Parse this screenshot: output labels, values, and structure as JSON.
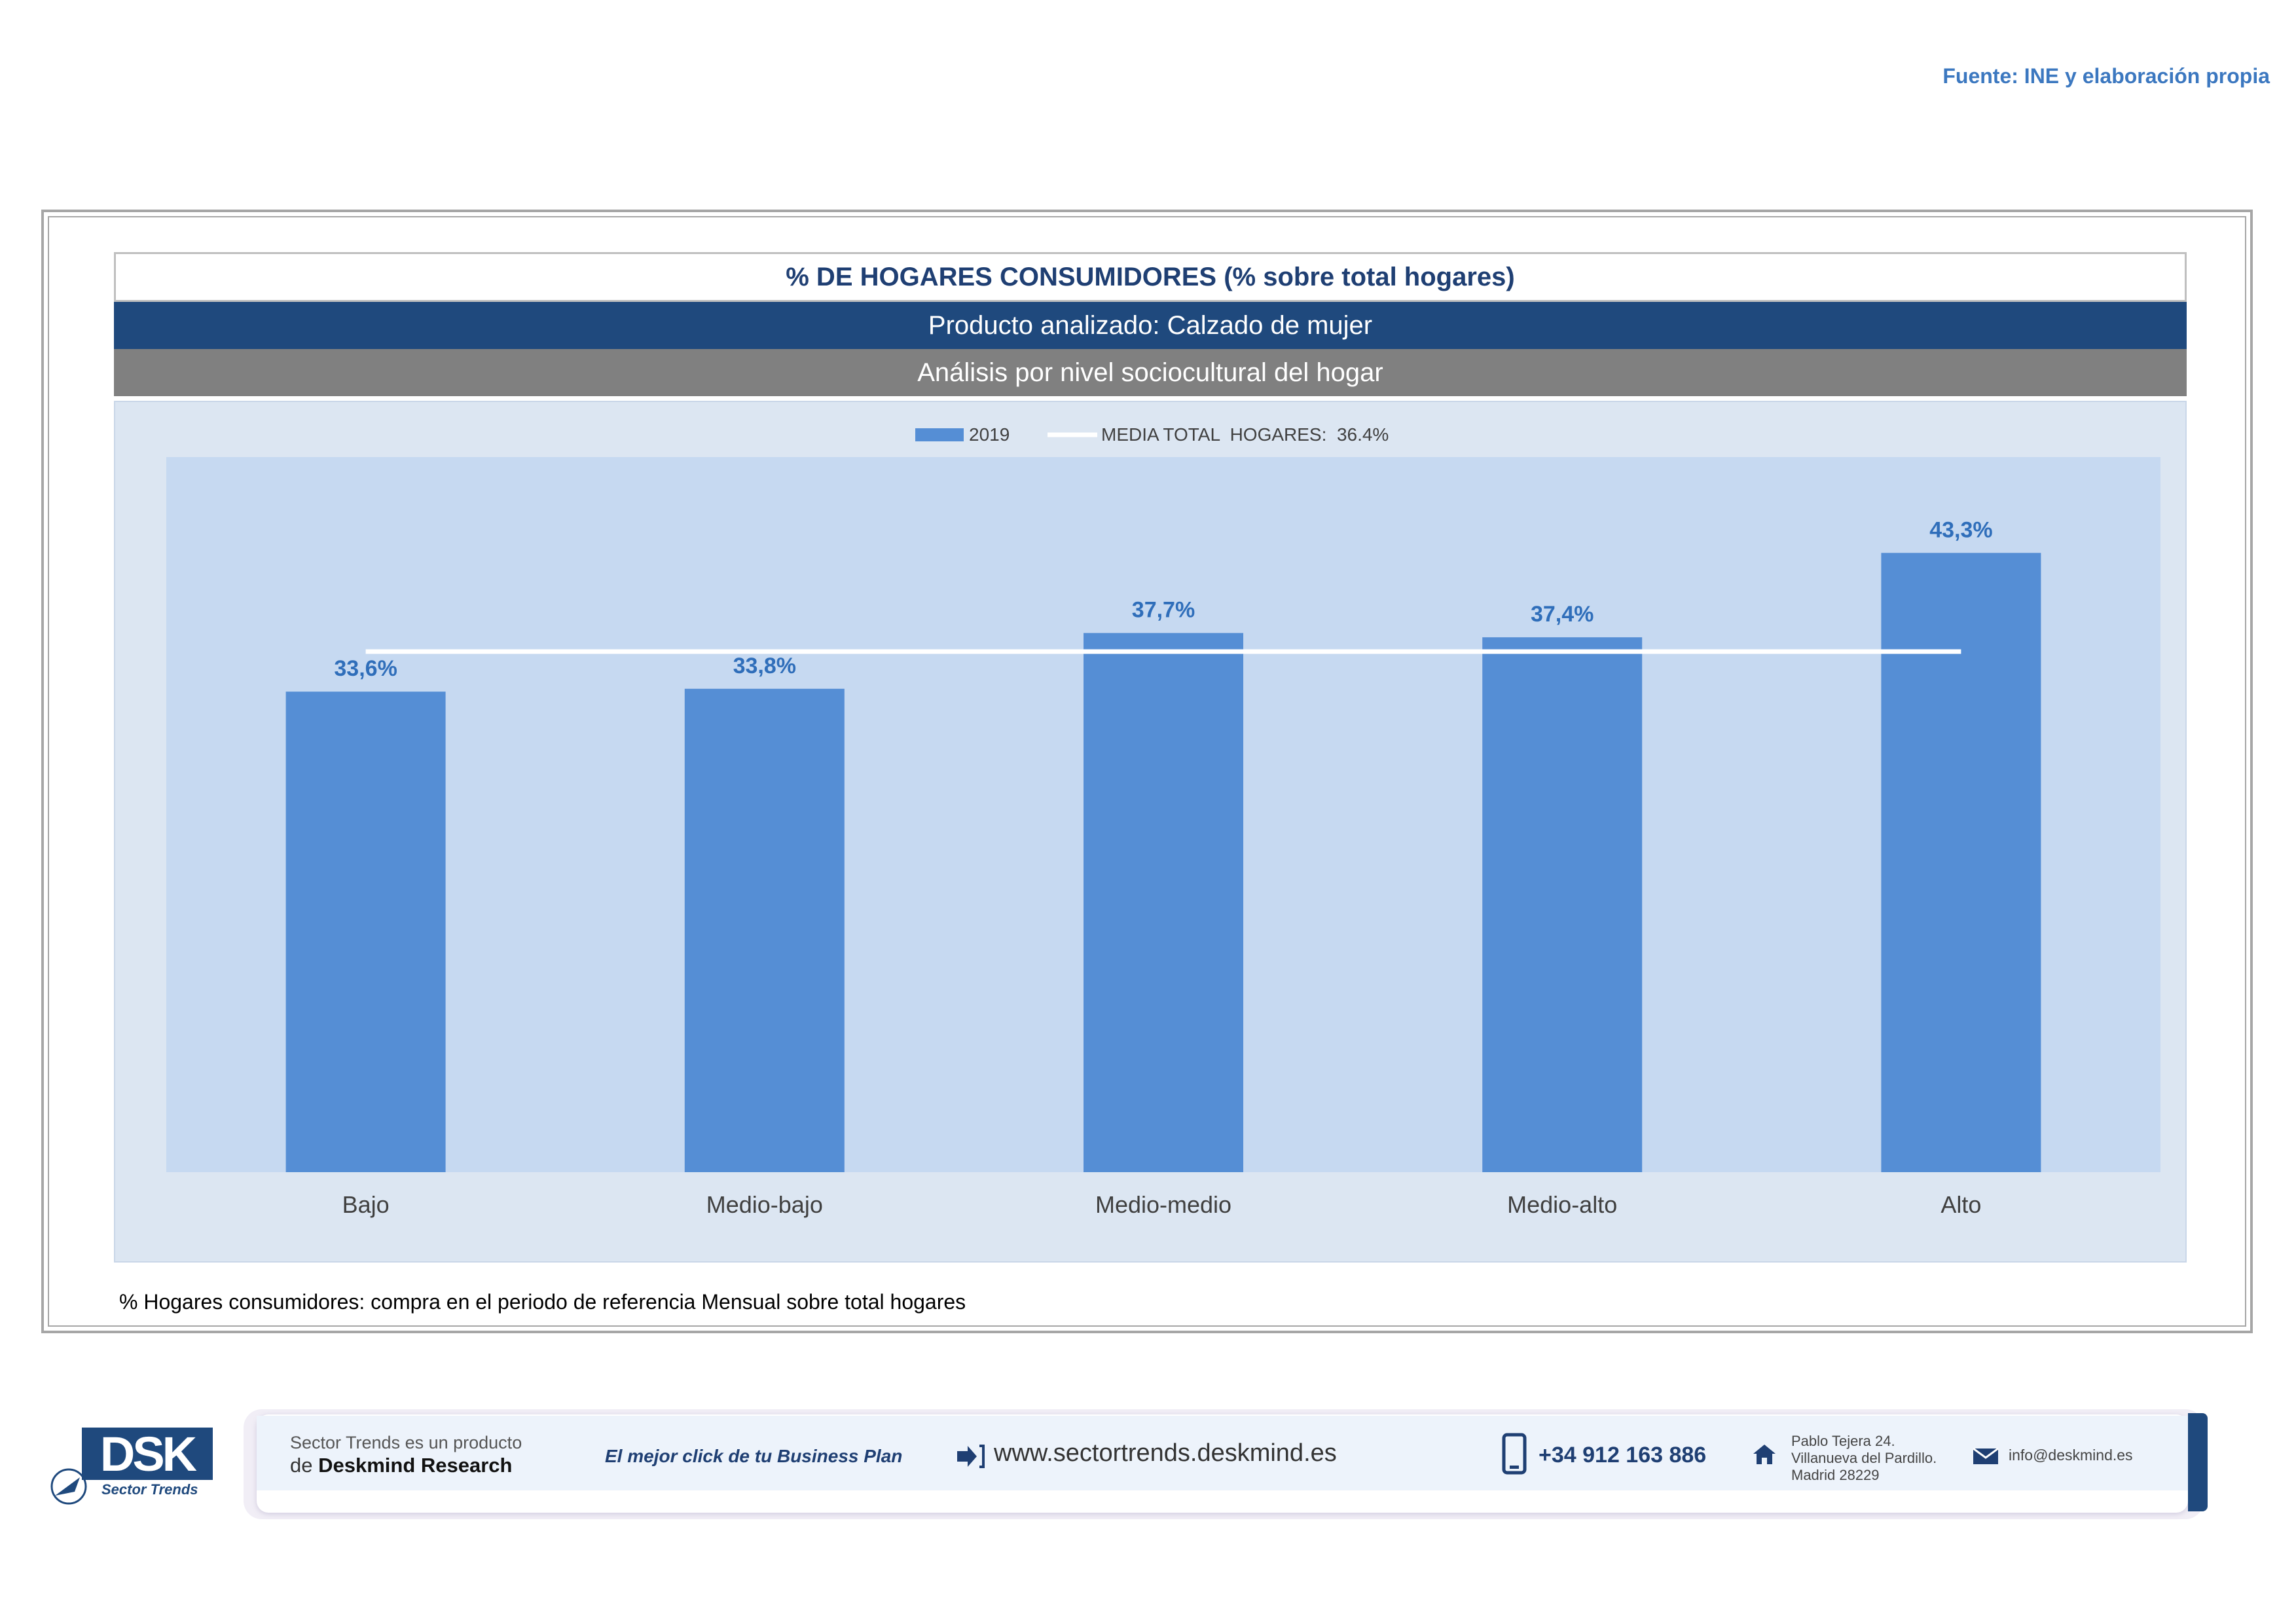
{
  "source": "Fuente: INE y elaboración propia",
  "title": "% DE HOGARES CONSUMIDORES (% sobre total hogares)",
  "product_band": "Producto analizado: Calzado de mujer",
  "analysis_band": "Análisis por nivel sociocultural del hogar",
  "footnote": "% Hogares consumidores: compra en el periodo de referencia Mensual sobre total hogares",
  "colors": {
    "bar": "#558ed5",
    "label": "#2f6eba",
    "plot_bg": "#c6d9f1",
    "panel_bg": "#dce6f2",
    "average_line": "#ffffff"
  },
  "chart_data": {
    "type": "bar",
    "categories": [
      "Bajo",
      "Medio-bajo",
      "Medio-medio",
      "Medio-alto",
      "Alto"
    ],
    "series": [
      {
        "name": "2019",
        "values": [
          33.6,
          33.8,
          37.7,
          37.4,
          43.3
        ]
      }
    ],
    "value_labels": [
      "33,6%",
      "33,8%",
      "37,7%",
      "37,4%",
      "43,3%"
    ],
    "average": {
      "label": "MEDIA TOTAL  HOGARES:  36.4%",
      "value": 36.4
    },
    "ylim": [
      0,
      50
    ],
    "legend_position": "top-center",
    "grid": false
  },
  "footer": {
    "logo_text": "DSK",
    "logo_sub": "Sector Trends",
    "line1": "Sector Trends es un producto",
    "line2_prefix": "de",
    "line2_brand": "Deskmind Research",
    "slogan": "El mejor click de tu Business Plan",
    "website": "www.sectortrends.deskmind.es",
    "phone": "+34 912 163 886",
    "address": [
      "Pablo Tejera 24.",
      "Villanueva del Pardillo.",
      "Madrid 28229"
    ],
    "email": "info@deskmind.es"
  }
}
